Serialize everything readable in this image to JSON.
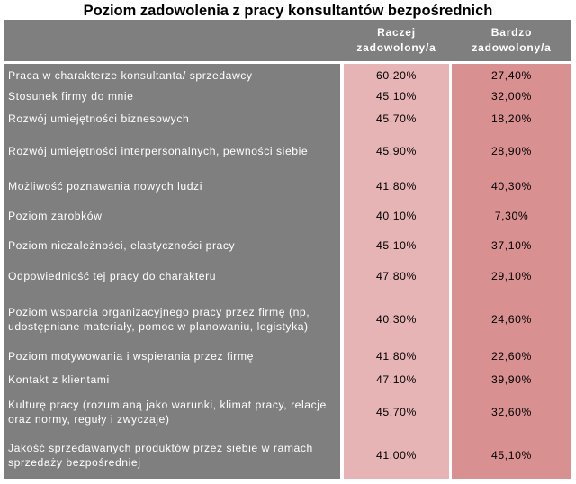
{
  "title": "Poziom zadowolenia z pracy konsultantów bezpośrednich",
  "chart_data": {
    "type": "table",
    "title": "Poziom zadowolenia z pracy konsultantów bezpośrednich",
    "columns": [
      {
        "line1": "Raczej",
        "line2": "zadowolony/a"
      },
      {
        "line1": "Bardzo",
        "line2": "zadowolony/a"
      }
    ],
    "rows": [
      {
        "label": "Praca w charakterze konsultanta/ sprzedawcy",
        "a": "60,20%",
        "b": "27,40%"
      },
      {
        "label": "Stosunek firmy do mnie",
        "a": "45,10%",
        "b": "32,00%"
      },
      {
        "label": "Rozwój umiejętności biznesowych",
        "a": "45,70%",
        "b": "18,20%"
      },
      {
        "label": "Rozwój umiejętności interpersonalnych, pewności siebie",
        "a": "45,90%",
        "b": "28,90%"
      },
      {
        "label": "Możliwość poznawania nowych ludzi",
        "a": "41,80%",
        "b": "40,30%"
      },
      {
        "label": "Poziom zarobków",
        "a": "40,10%",
        "b": "7,30%"
      },
      {
        "label": "Poziom niezależności, elastyczności pracy",
        "a": "45,10%",
        "b": "37,10%"
      },
      {
        "label": "Odpowiedniość tej pracy do charakteru",
        "a": "47,80%",
        "b": "29,10%"
      },
      {
        "label": "Poziom wsparcia organizacyjnego pracy przez firmę (np, udostępniane materiały, pomoc w planowaniu, logistyka)",
        "a": "40,30%",
        "b": "24,60%"
      },
      {
        "label": "Poziom motywowania i wspierania przez firmę",
        "a": "41,80%",
        "b": "22,60%"
      },
      {
        "label": "Kontakt z klientami",
        "a": "47,10%",
        "b": "39,90%"
      },
      {
        "label": "Kulturę pracy (rozumianą jako warunki, klimat pracy, relacje oraz normy, reguły i zwyczaje)",
        "a": "45,70%",
        "b": "32,60%"
      },
      {
        "label": "Jakość sprzedawanych produktów przez siebie w ramach sprzedaży bezpośredniej",
        "a": "41,00%",
        "b": "45,10%"
      }
    ]
  },
  "colors": {
    "label_bg": "#7f7f7f",
    "col_a_bg": "#e6b4b4",
    "col_b_bg": "#d99090"
  }
}
